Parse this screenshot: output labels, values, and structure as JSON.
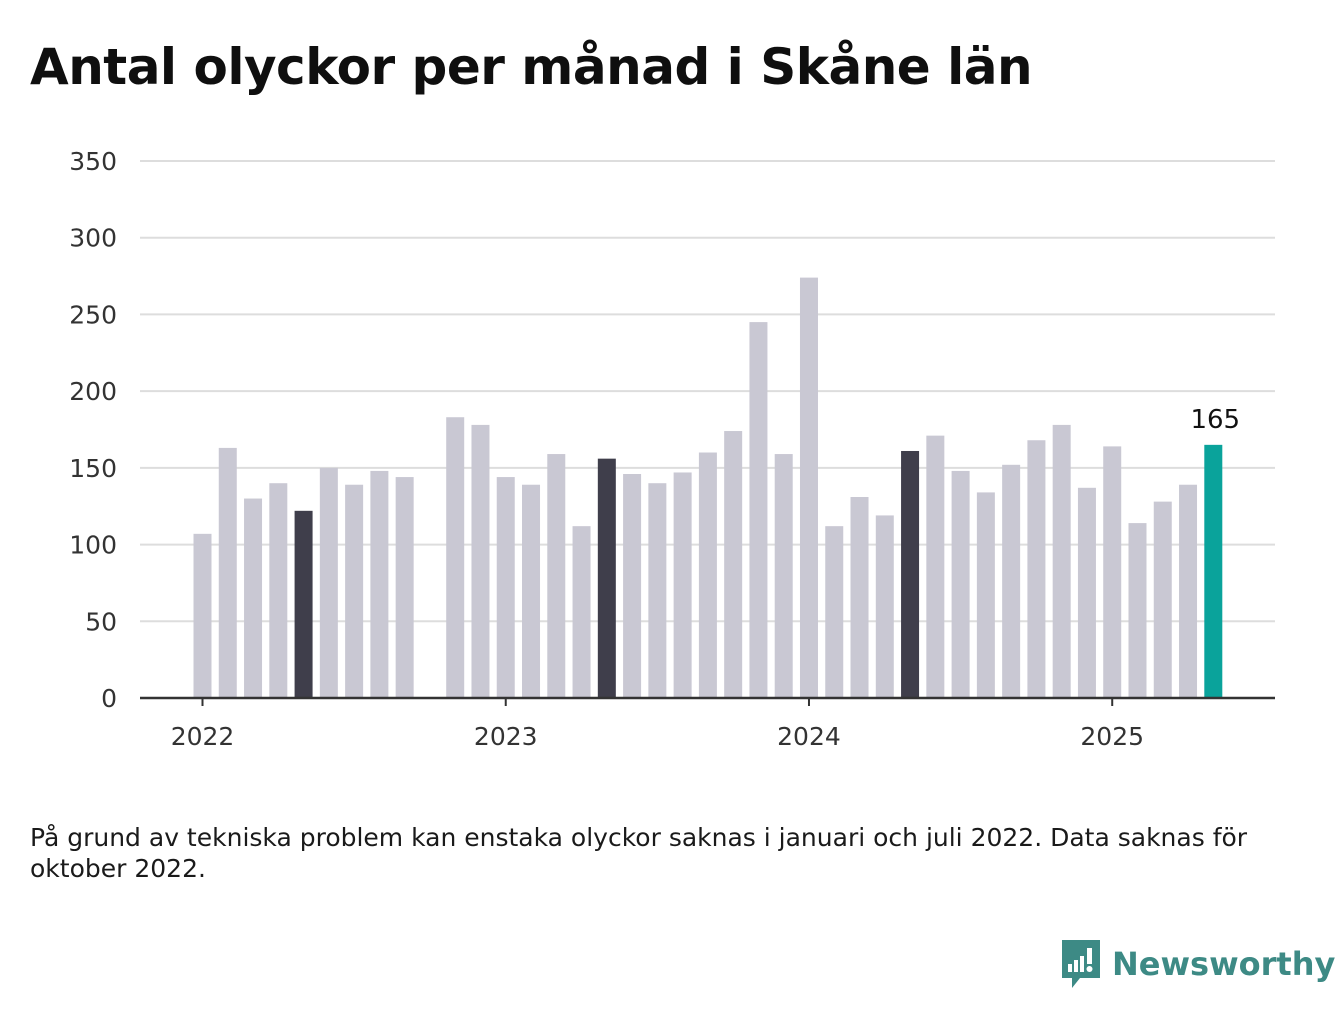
{
  "title": "Antal olyckor per månad i Skåne län",
  "note": "På grund av tekniska problem kan enstaka olyckor saknas i januari och juli 2022. Data saknas för oktober 2022.",
  "brand": {
    "name": "Newsworthy"
  },
  "colors": {
    "default_bar": "#c9c8d3",
    "highlight_month": "#3f3e4b",
    "latest_bar": "#0aa39b",
    "brand": "#3d8a85",
    "grid": "#dddddd",
    "axis": "#333333"
  },
  "chart_data": {
    "type": "bar",
    "title": "Antal olyckor per månad i Skåne län",
    "xlabel": "",
    "ylabel": "",
    "ylim": [
      0,
      350
    ],
    "yticks": [
      0,
      50,
      100,
      150,
      200,
      250,
      300,
      350
    ],
    "xtick_labels": [
      "2022",
      "2023",
      "2024",
      "2025"
    ],
    "grid": true,
    "highlighted_months": [
      "2022-05",
      "2023-05",
      "2024-05"
    ],
    "latest": {
      "x": "2025-05",
      "label": "165"
    },
    "x": [
      "2022-01",
      "2022-02",
      "2022-03",
      "2022-04",
      "2022-05",
      "2022-06",
      "2022-07",
      "2022-08",
      "2022-09",
      "2022-10",
      "2022-11",
      "2022-12",
      "2023-01",
      "2023-02",
      "2023-03",
      "2023-04",
      "2023-05",
      "2023-06",
      "2023-07",
      "2023-08",
      "2023-09",
      "2023-10",
      "2023-11",
      "2023-12",
      "2024-01",
      "2024-02",
      "2024-03",
      "2024-04",
      "2024-05",
      "2024-06",
      "2024-07",
      "2024-08",
      "2024-09",
      "2024-10",
      "2024-11",
      "2024-12",
      "2025-01",
      "2025-02",
      "2025-03",
      "2025-04",
      "2025-05"
    ],
    "values": [
      107,
      163,
      130,
      140,
      122,
      150,
      139,
      148,
      144,
      null,
      183,
      178,
      144,
      139,
      159,
      112,
      156,
      146,
      140,
      147,
      160,
      174,
      245,
      159,
      274,
      112,
      131,
      119,
      161,
      171,
      148,
      134,
      152,
      168,
      178,
      137,
      164,
      114,
      128,
      139,
      165
    ]
  }
}
